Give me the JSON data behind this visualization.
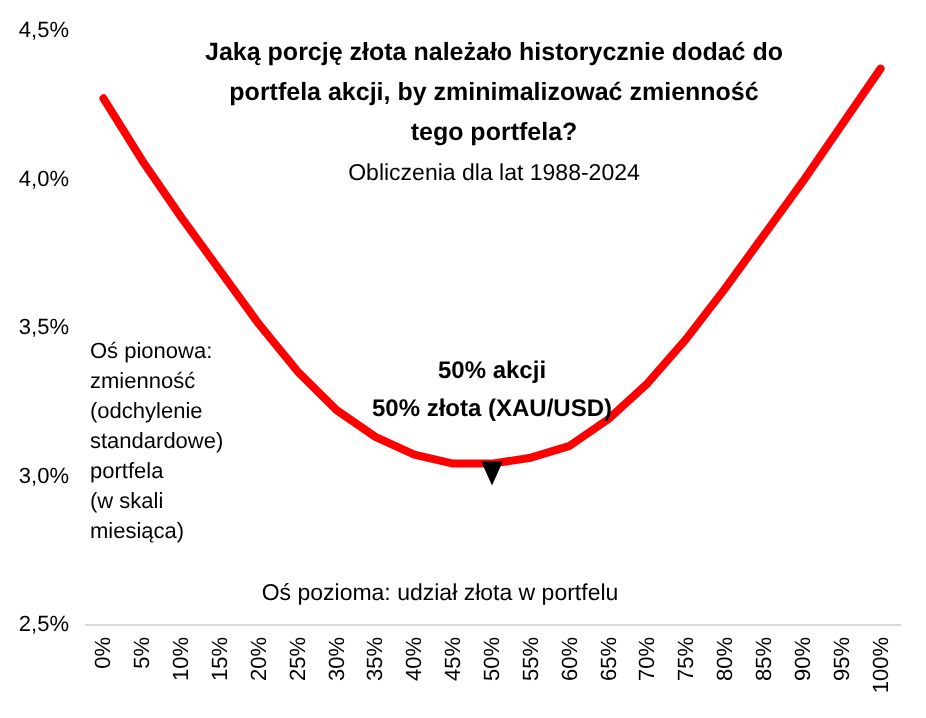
{
  "chart_data": {
    "type": "line",
    "title": "Jaką porcję złota należało historycznie dodać do\nportfela akcji, by zminimalizować zmienność\ntego portfela?",
    "subtitle": "Obliczenia dla lat 1988-2024",
    "xlabel": "Oś pozioma: udział złota w portfelu",
    "ylabel": "Oś pionowa:\nzmienność\n(odchylenie\nstandardowe)\nportfela\n(w skali\nmiesiąca)",
    "annotations": [
      {
        "text": "50% akcji\n50% złota (XAU/USD)",
        "x": "50%",
        "y": 3.04
      }
    ],
    "categories": [
      "0%",
      "5%",
      "10%",
      "15%",
      "20%",
      "25%",
      "30%",
      "35%",
      "40%",
      "45%",
      "50%",
      "55%",
      "60%",
      "65%",
      "70%",
      "75%",
      "80%",
      "85%",
      "90%",
      "95%",
      "100%"
    ],
    "series": [
      {
        "color": "#ff0000",
        "values": [
          4.27,
          4.06,
          3.87,
          3.69,
          3.51,
          3.35,
          3.22,
          3.13,
          3.07,
          3.04,
          3.04,
          3.06,
          3.1,
          3.19,
          3.31,
          3.46,
          3.63,
          3.81,
          3.99,
          4.18,
          4.37
        ]
      }
    ],
    "ylim": [
      2.5,
      4.5
    ],
    "yticks": [
      {
        "value": 2.5,
        "label": "2,5%"
      },
      {
        "value": 3.0,
        "label": "3,0%"
      },
      {
        "value": 3.5,
        "label": "3,5%"
      },
      {
        "value": 4.0,
        "label": "4,0%"
      },
      {
        "value": 4.5,
        "label": "4,5%"
      }
    ],
    "grid": false,
    "marker": "none",
    "line_style": "solid"
  }
}
